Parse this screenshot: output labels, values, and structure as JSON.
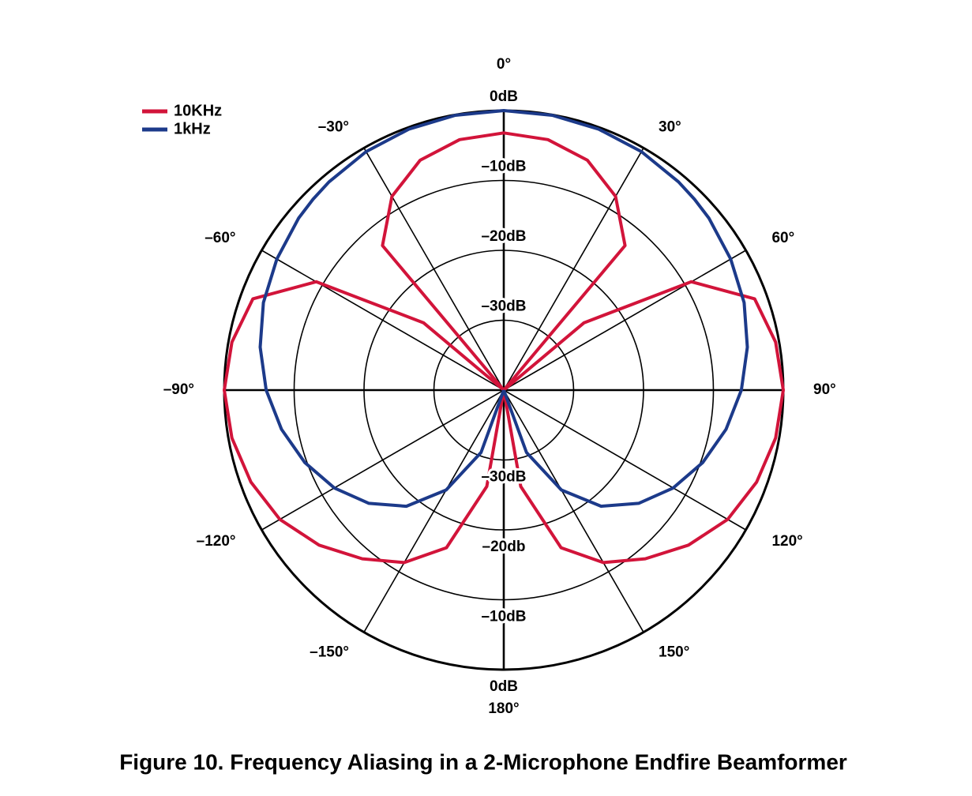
{
  "chart_data": {
    "type": "polar",
    "title": "Figure 10. Frequency Aliasing in a 2-Microphone Endfire Beamformer",
    "theta": [
      -180,
      -170,
      -160,
      -150,
      -140,
      -130,
      -120,
      -110,
      -100,
      -90,
      -80,
      -70,
      -60,
      -50,
      -45,
      -40,
      -30,
      -20,
      -10,
      0,
      10,
      20,
      30,
      40,
      45,
      50,
      60,
      70,
      80,
      90,
      100,
      110,
      120,
      130,
      140,
      150,
      160,
      170,
      180
    ],
    "series": [
      {
        "name": "10KHz",
        "color": "#d2143a",
        "values": [
          -40,
          -26,
          -16,
          -11.5,
          -8.5,
          -5.5,
          -3,
          -1.5,
          -0.5,
          0,
          -0.5,
          -1.8,
          -9,
          -25,
          -40,
          -13,
          -8,
          -5,
          -3.6,
          -3.2,
          -3.6,
          -5,
          -8,
          -13,
          -40,
          -25,
          -9,
          -1.8,
          -0.5,
          0,
          -0.5,
          -1.5,
          -3,
          -5.5,
          -8.5,
          -11.5,
          -16,
          -26,
          -40
        ]
      },
      {
        "name": "1kHz",
        "color": "#1c3a8a",
        "values": [
          -40,
          -40,
          -30.5,
          -23.5,
          -18.3,
          -14.8,
          -12,
          -9.7,
          -7.7,
          -6,
          -4.6,
          -3.4,
          -2.5,
          -1.7,
          -1.4,
          -1.1,
          -0.6,
          -0.27,
          -0.07,
          0,
          -0.07,
          -0.27,
          -0.6,
          -1.1,
          -1.4,
          -1.7,
          -2.5,
          -3.4,
          -4.6,
          -6,
          -7.7,
          -9.7,
          -12,
          -14.8,
          -18.3,
          -23.5,
          -30.5,
          -40,
          -40
        ]
      }
    ],
    "rlim": [
      -40,
      0
    ],
    "rticks": [
      {
        "value": 0,
        "label": "0dB"
      },
      {
        "value": -10,
        "label": "–10dB"
      },
      {
        "value": -20,
        "label": "–20dB"
      },
      {
        "value": -30,
        "label": "–30dB"
      }
    ],
    "rticks_bottom": [
      {
        "value": -30,
        "label": "–30dB"
      },
      {
        "value": -20,
        "label": "–20db"
      },
      {
        "value": -10,
        "label": "–10dB"
      },
      {
        "value": 0,
        "label": "0dB"
      }
    ],
    "thetaticks": [
      {
        "value": 0,
        "label": "0°"
      },
      {
        "value": 30,
        "label": "30°"
      },
      {
        "value": 60,
        "label": "60°"
      },
      {
        "value": 90,
        "label": "90°"
      },
      {
        "value": 120,
        "label": "120°"
      },
      {
        "value": 150,
        "label": "150°"
      },
      {
        "value": 180,
        "label": "180°"
      },
      {
        "value": -150,
        "label": "–150°"
      },
      {
        "value": -120,
        "label": "–120°"
      },
      {
        "value": -90,
        "label": "–90°"
      },
      {
        "value": -60,
        "label": "–60°"
      },
      {
        "value": -30,
        "label": "–30°"
      }
    ]
  }
}
